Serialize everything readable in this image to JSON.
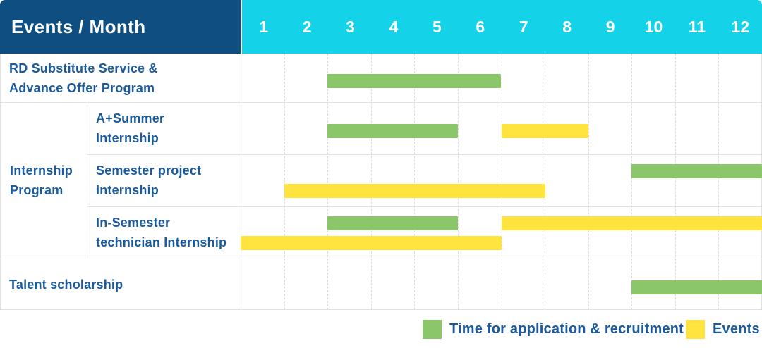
{
  "header": {
    "title": "Events / Month"
  },
  "months": [
    "1",
    "2",
    "3",
    "4",
    "5",
    "6",
    "7",
    "8",
    "9",
    "10",
    "11",
    "12"
  ],
  "colors": {
    "header_bg": "#0f4e80",
    "months_bg": "#14d2e8",
    "text_blue": "#1b5b9d",
    "green": "#8bc76a",
    "yellow": "#ffe440",
    "grid": "#e2e2e2"
  },
  "group_label": {
    "text": "Internship Program",
    "label_lines": [
      "Internship",
      "Program"
    ]
  },
  "legend": {
    "items": [
      {
        "key": "application",
        "label": "Time for application & recruitment",
        "color": "#8bc76a"
      },
      {
        "key": "event",
        "label": "Events",
        "color": "#ffe440"
      }
    ]
  },
  "chart_data": {
    "type": "bar",
    "subtype": "gantt",
    "title": "Events / Month",
    "xlabel": "Month",
    "x_ticks": [
      1,
      2,
      3,
      4,
      5,
      6,
      7,
      8,
      9,
      10,
      11,
      12
    ],
    "x_range": [
      1,
      12
    ],
    "grid": "dashed-vertical",
    "legend_position": "bottom-right",
    "series_meaning": {
      "application": "Time for application & recruitment (green)",
      "event": "Events (yellow)"
    },
    "rows": [
      {
        "label": "RD Substitute Service & Advance Offer Program",
        "label_lines": [
          "RD Substitute Service &",
          "Advance Offer Program"
        ],
        "group": null,
        "bars": [
          {
            "kind": "application",
            "start_month": 3,
            "end_month": 6,
            "lane": "mid"
          }
        ]
      },
      {
        "label": "A+Summer Internship",
        "label_lines": [
          "A+Summer",
          "Internship"
        ],
        "group": "Internship Program",
        "bars": [
          {
            "kind": "application",
            "start_month": 3,
            "end_month": 5,
            "lane": "mid"
          },
          {
            "kind": "event",
            "start_month": 7,
            "end_month": 8,
            "lane": "mid"
          }
        ]
      },
      {
        "label": "Semester project Internship",
        "label_lines": [
          "Semester project",
          "Internship"
        ],
        "group": "Internship Program",
        "bars": [
          {
            "kind": "application",
            "start_month": 10,
            "end_month": 12,
            "lane": "top"
          },
          {
            "kind": "event",
            "start_month": 2,
            "end_month": 7,
            "lane": "bottom"
          }
        ]
      },
      {
        "label": "In-Semester technician Internship",
        "label_lines": [
          "In-Semester",
          "technician Internship"
        ],
        "group": "Internship Program",
        "bars": [
          {
            "kind": "application",
            "start_month": 3,
            "end_month": 5,
            "lane": "top"
          },
          {
            "kind": "event",
            "start_month": 7,
            "end_month": 12,
            "lane": "top"
          },
          {
            "kind": "event",
            "start_month": 1,
            "end_month": 6,
            "lane": "bottom"
          }
        ]
      },
      {
        "label": "Talent scholarship",
        "label_lines": [
          "Talent scholarship"
        ],
        "group": null,
        "bars": [
          {
            "kind": "application",
            "start_month": 10,
            "end_month": 12,
            "lane": "mid"
          }
        ]
      }
    ]
  }
}
